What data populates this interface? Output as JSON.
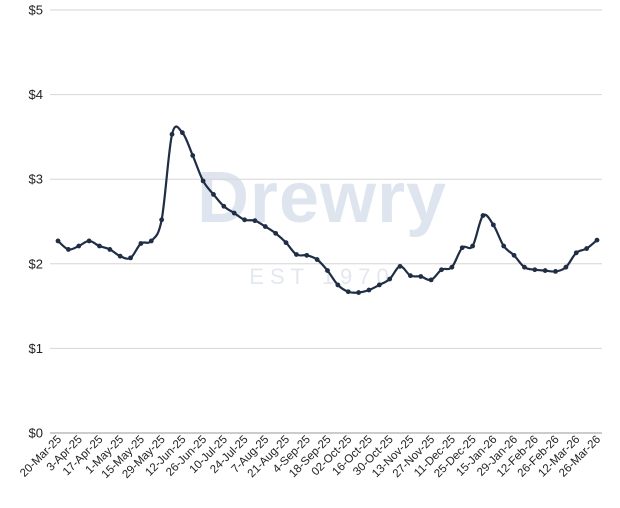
{
  "watermark": {
    "brand": "Drewry",
    "established": "EST  1970"
  },
  "chart_data": {
    "type": "line",
    "title": "",
    "xlabel": "",
    "ylabel": "",
    "ylim": [
      0,
      5
    ],
    "yticks": [
      "$0",
      "$1",
      "$2",
      "$3",
      "$4",
      "$5"
    ],
    "grid": "horizontal",
    "legend": "none",
    "line_color": "#1f2d45",
    "xtick_labels": [
      "20-Mar-25",
      "3-Apr-25",
      "17-Apr-25",
      "1-May-25",
      "15-May-25",
      "29-May-25",
      "12-Jun-25",
      "26-Jun-25",
      "10-Jul-25",
      "24-Jul-25",
      "7-Aug-25",
      "21-Aug-25",
      "4-Sep-25",
      "18-Sep-25",
      "02-Oct-25",
      "16-Oct-25",
      "30-Oct-25",
      "13-Nov-25",
      "27-Nov-25",
      "11-Dec-25",
      "25-Dec-25",
      "15-Jan-26",
      "29-Jan-26",
      "12-Feb-26",
      "26-Feb-26",
      "12-Mar-26",
      "26-Mar-26"
    ],
    "series": [
      {
        "values": [
          2.27,
          2.17,
          2.21,
          2.27,
          2.21,
          2.17,
          2.09,
          2.07,
          2.24,
          2.27,
          2.52,
          3.53,
          3.55,
          3.28,
          2.98,
          2.82,
          2.68,
          2.6,
          2.52,
          2.51,
          2.44,
          2.36,
          2.25,
          2.11,
          2.1,
          2.05,
          1.92,
          1.75,
          1.67,
          1.66,
          1.69,
          1.75,
          1.82,
          1.97,
          1.86,
          1.85,
          1.81,
          1.93,
          1.96,
          2.19,
          2.21,
          2.57,
          2.46,
          2.21,
          2.1,
          1.96,
          1.93,
          1.92,
          1.91,
          1.96,
          2.13,
          2.18,
          2.28
        ]
      }
    ]
  }
}
